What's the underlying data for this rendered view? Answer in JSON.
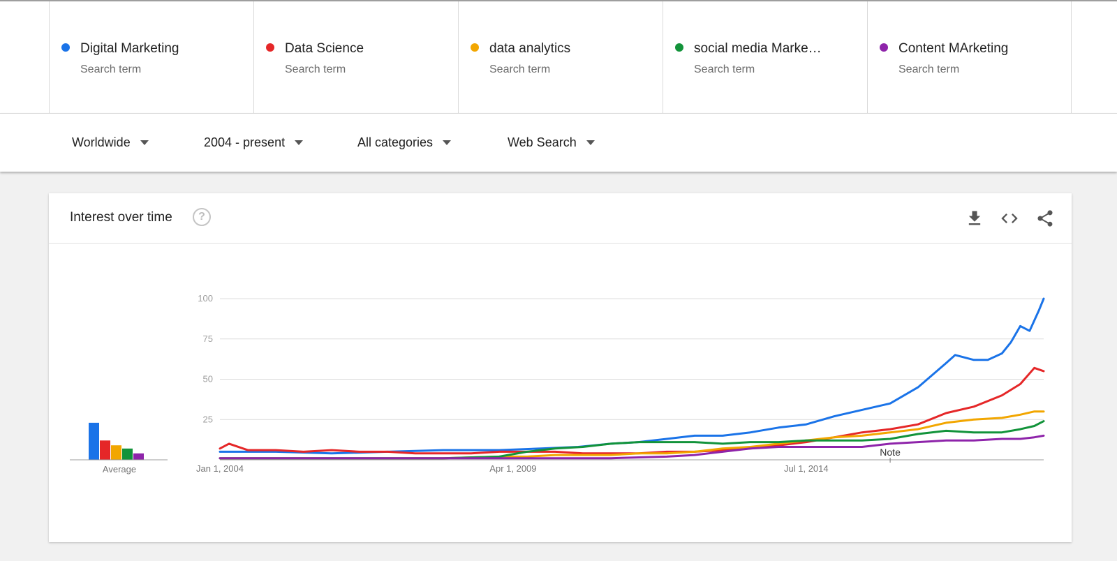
{
  "terms": [
    {
      "name": "Digital Marketing",
      "sub": "Search term",
      "color": "#1a73e8"
    },
    {
      "name": "Data Science",
      "sub": "Search term",
      "color": "#e52728"
    },
    {
      "name": "data analytics",
      "sub": "Search term",
      "color": "#f2a600"
    },
    {
      "name": "social media Marke…",
      "sub": "Search term",
      "color": "#12933a"
    },
    {
      "name": "Content MArketing",
      "sub": "Search term",
      "color": "#8e24aa"
    }
  ],
  "filters": {
    "region": "Worldwide",
    "time": "2004 - present",
    "category": "All categories",
    "search_type": "Web Search"
  },
  "card": {
    "title": "Interest over time",
    "help_glyph": "?",
    "icons": [
      "download-icon",
      "embed-code-icon",
      "share-icon"
    ]
  },
  "chart_data": {
    "type": "line",
    "ylim": [
      0,
      100
    ],
    "yticks": [
      100,
      75,
      50,
      25
    ],
    "x_tick_labels": [
      "Jan 1, 2004",
      "Apr 1, 2009",
      "Jul 1, 2014"
    ],
    "x_tick_dates": [
      "2004-01-01",
      "2009-04-01",
      "2014-07-01"
    ],
    "x_range": [
      "2004-01-01",
      "2018-10-01"
    ],
    "note_label": "Note",
    "note_date": "2016-01-01",
    "average_label": "Average",
    "grid": true,
    "series": [
      {
        "name": "Digital Marketing",
        "color": "#1a73e8",
        "points": [
          [
            "2004-01-01",
            5
          ],
          [
            "2005-01-01",
            5
          ],
          [
            "2006-01-01",
            4
          ],
          [
            "2007-01-01",
            5
          ],
          [
            "2008-01-01",
            6
          ],
          [
            "2009-01-01",
            6
          ],
          [
            "2009-10-01",
            7
          ],
          [
            "2010-06-01",
            8
          ],
          [
            "2011-01-01",
            10
          ],
          [
            "2011-07-01",
            11
          ],
          [
            "2012-01-01",
            13
          ],
          [
            "2012-07-01",
            15
          ],
          [
            "2013-01-01",
            15
          ],
          [
            "2013-07-01",
            17
          ],
          [
            "2014-01-01",
            20
          ],
          [
            "2014-07-01",
            22
          ],
          [
            "2015-01-01",
            27
          ],
          [
            "2015-07-01",
            31
          ],
          [
            "2016-01-01",
            35
          ],
          [
            "2016-07-01",
            45
          ],
          [
            "2017-01-01",
            60
          ],
          [
            "2017-03-01",
            65
          ],
          [
            "2017-07-01",
            62
          ],
          [
            "2017-10-01",
            62
          ],
          [
            "2018-01-01",
            66
          ],
          [
            "2018-03-01",
            73
          ],
          [
            "2018-05-01",
            83
          ],
          [
            "2018-07-01",
            80
          ],
          [
            "2018-09-01",
            93
          ],
          [
            "2018-10-01",
            100
          ]
        ]
      },
      {
        "name": "Data Science",
        "color": "#e52728",
        "points": [
          [
            "2004-01-01",
            7
          ],
          [
            "2004-03-01",
            10
          ],
          [
            "2004-07-01",
            6
          ],
          [
            "2005-01-01",
            6
          ],
          [
            "2005-07-01",
            5
          ],
          [
            "2006-01-01",
            6
          ],
          [
            "2006-07-01",
            5
          ],
          [
            "2007-01-01",
            5
          ],
          [
            "2007-07-01",
            4
          ],
          [
            "2008-01-01",
            4
          ],
          [
            "2008-07-01",
            4
          ],
          [
            "2009-01-01",
            5
          ],
          [
            "2009-07-01",
            5
          ],
          [
            "2010-01-01",
            5
          ],
          [
            "2010-07-01",
            4
          ],
          [
            "2011-01-01",
            4
          ],
          [
            "2011-07-01",
            4
          ],
          [
            "2012-01-01",
            5
          ],
          [
            "2012-07-01",
            5
          ],
          [
            "2013-01-01",
            6
          ],
          [
            "2013-07-01",
            7
          ],
          [
            "2014-01-01",
            9
          ],
          [
            "2014-07-01",
            11
          ],
          [
            "2015-01-01",
            14
          ],
          [
            "2015-07-01",
            17
          ],
          [
            "2016-01-01",
            19
          ],
          [
            "2016-07-01",
            22
          ],
          [
            "2017-01-01",
            29
          ],
          [
            "2017-07-01",
            33
          ],
          [
            "2018-01-01",
            40
          ],
          [
            "2018-05-01",
            47
          ],
          [
            "2018-08-01",
            57
          ],
          [
            "2018-10-01",
            55
          ]
        ]
      },
      {
        "name": "data analytics",
        "color": "#f2a600",
        "points": [
          [
            "2004-01-01",
            1
          ],
          [
            "2005-01-01",
            1
          ],
          [
            "2006-01-01",
            1
          ],
          [
            "2007-01-01",
            1
          ],
          [
            "2008-01-01",
            1
          ],
          [
            "2009-01-01",
            2
          ],
          [
            "2009-07-01",
            2
          ],
          [
            "2010-01-01",
            3
          ],
          [
            "2010-07-01",
            3
          ],
          [
            "2011-01-01",
            3
          ],
          [
            "2011-07-01",
            4
          ],
          [
            "2012-01-01",
            4
          ],
          [
            "2012-07-01",
            5
          ],
          [
            "2013-01-01",
            7
          ],
          [
            "2013-07-01",
            8
          ],
          [
            "2014-01-01",
            10
          ],
          [
            "2014-07-01",
            12
          ],
          [
            "2015-01-01",
            14
          ],
          [
            "2015-07-01",
            15
          ],
          [
            "2016-01-01",
            17
          ],
          [
            "2016-07-01",
            19
          ],
          [
            "2017-01-01",
            23
          ],
          [
            "2017-07-01",
            25
          ],
          [
            "2018-01-01",
            26
          ],
          [
            "2018-05-01",
            28
          ],
          [
            "2018-08-01",
            30
          ],
          [
            "2018-10-01",
            30
          ]
        ]
      },
      {
        "name": "social media Marke…",
        "color": "#12933a",
        "points": [
          [
            "2004-01-01",
            1
          ],
          [
            "2005-01-01",
            1
          ],
          [
            "2006-01-01",
            1
          ],
          [
            "2007-01-01",
            1
          ],
          [
            "2008-01-01",
            1
          ],
          [
            "2009-01-01",
            2
          ],
          [
            "2009-07-01",
            5
          ],
          [
            "2010-01-01",
            7
          ],
          [
            "2010-07-01",
            8
          ],
          [
            "2011-01-01",
            10
          ],
          [
            "2011-07-01",
            11
          ],
          [
            "2012-01-01",
            11
          ],
          [
            "2012-07-01",
            11
          ],
          [
            "2013-01-01",
            10
          ],
          [
            "2013-07-01",
            11
          ],
          [
            "2014-01-01",
            11
          ],
          [
            "2014-07-01",
            12
          ],
          [
            "2015-01-01",
            12
          ],
          [
            "2015-07-01",
            12
          ],
          [
            "2016-01-01",
            13
          ],
          [
            "2016-07-01",
            16
          ],
          [
            "2017-01-01",
            18
          ],
          [
            "2017-07-01",
            17
          ],
          [
            "2018-01-01",
            17
          ],
          [
            "2018-05-01",
            19
          ],
          [
            "2018-08-01",
            21
          ],
          [
            "2018-10-01",
            24
          ]
        ]
      },
      {
        "name": "Content MArketing",
        "color": "#8e24aa",
        "points": [
          [
            "2004-01-01",
            1
          ],
          [
            "2005-01-01",
            1
          ],
          [
            "2006-01-01",
            1
          ],
          [
            "2007-01-01",
            1
          ],
          [
            "2008-01-01",
            1
          ],
          [
            "2009-01-01",
            1
          ],
          [
            "2010-01-01",
            1
          ],
          [
            "2011-01-01",
            1
          ],
          [
            "2012-01-01",
            2
          ],
          [
            "2012-07-01",
            3
          ],
          [
            "2013-01-01",
            5
          ],
          [
            "2013-07-01",
            7
          ],
          [
            "2014-01-01",
            8
          ],
          [
            "2014-07-01",
            8
          ],
          [
            "2015-01-01",
            8
          ],
          [
            "2015-07-01",
            8
          ],
          [
            "2016-01-01",
            10
          ],
          [
            "2016-07-01",
            11
          ],
          [
            "2017-01-01",
            12
          ],
          [
            "2017-07-01",
            12
          ],
          [
            "2018-01-01",
            13
          ],
          [
            "2018-05-01",
            13
          ],
          [
            "2018-08-01",
            14
          ],
          [
            "2018-10-01",
            15
          ]
        ]
      }
    ],
    "averages": [
      23,
      12,
      9,
      7,
      4
    ]
  }
}
